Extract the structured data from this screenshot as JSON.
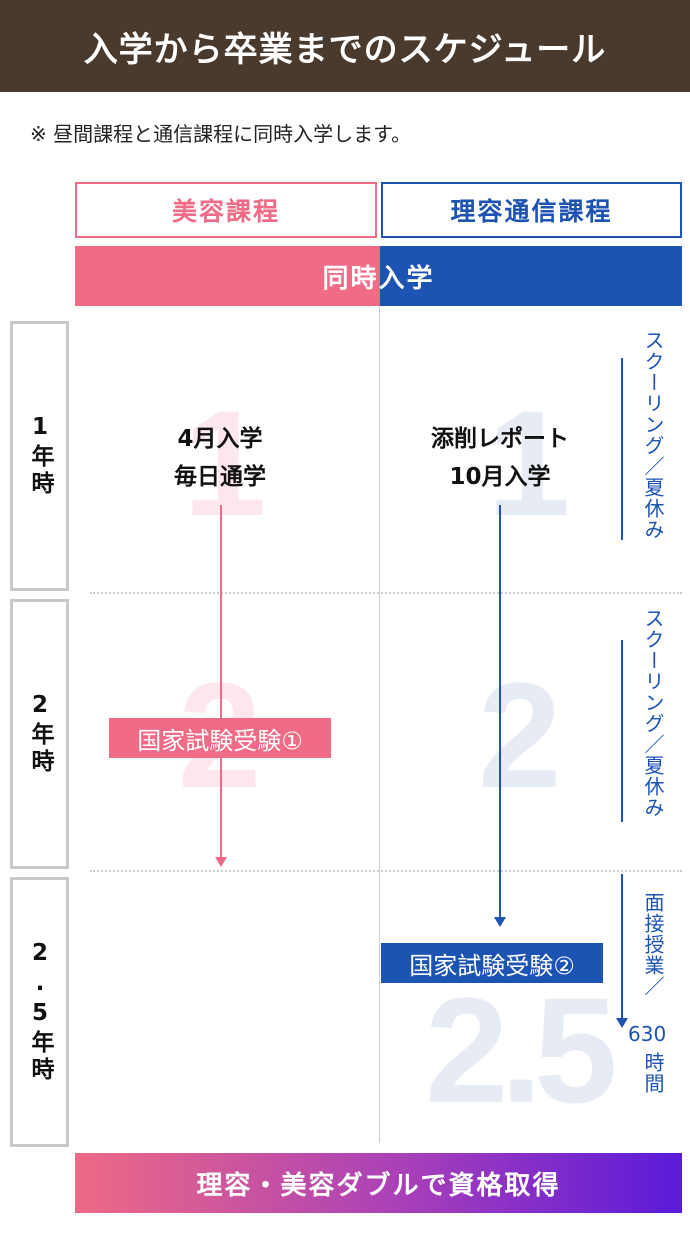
{
  "header": {
    "title": "入学から卒業までのスケジュール"
  },
  "note": "※ 昼間課程と通信課程に同時入学します。",
  "courses": {
    "left": "美容課程",
    "right": "理容通信課程"
  },
  "join_label": "同時入学",
  "years": [
    {
      "label": "1年時",
      "bignum": "1"
    },
    {
      "label": "2年時",
      "bignum": "2"
    },
    {
      "label": "2.5年時",
      "bignum": "2.5"
    }
  ],
  "left_col": {
    "line1": "4月入学",
    "line2": "毎日通学",
    "exam": "国家試験受験①"
  },
  "right_col": {
    "line1": "添削レポート",
    "line2": "10月入学",
    "exam": "国家試験受験②"
  },
  "side": {
    "year1": "スクーリング／夏休み",
    "year2": "スクーリング／夏休み",
    "year3_a": "面接授業／",
    "year3_b": "630",
    "year3_c": "時間"
  },
  "footer": "理容・美容ダブルで資格取得",
  "colors": {
    "pink": "#ef6b86",
    "blue": "#1d53b3",
    "brown": "#4a3a2d"
  }
}
